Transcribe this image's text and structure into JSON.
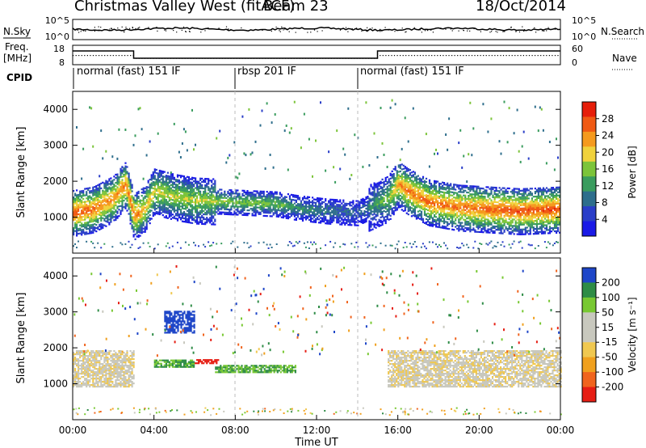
{
  "header": {
    "station": "Christmas Valley West (fitACF)",
    "beam": "Beam 23",
    "date": "18/Oct/2014"
  },
  "labels": {
    "nsky": "N.Sky",
    "nsearch": "N.Search",
    "freq_line1": "Freq.",
    "freq_line2": "[MHz]",
    "nave": "Nave",
    "cpid": "CPID",
    "slant_range": "Slant Range [km]",
    "power_colorbar": "Power [dB]",
    "velocity_colorbar": "Velocity [m s⁻¹]",
    "time_axis": "Time UT"
  },
  "noise_panel": {
    "left_ticks": [
      "10^5",
      "10^0"
    ],
    "right_ticks": [
      "10^5",
      "10^0"
    ]
  },
  "freq_panel": {
    "left_ticks": [
      "18",
      "8"
    ],
    "right_ticks": [
      "60",
      "0"
    ]
  },
  "cpid_segments": [
    {
      "label": "normal (fast) 151 IF",
      "start_hour": 0
    },
    {
      "label": "rbsp 201 IF",
      "start_hour": 8
    },
    {
      "label": "normal (fast) 151 IF",
      "start_hour": 14
    }
  ],
  "colors": {
    "power": [
      "#1a1ae6",
      "#2a3ec8",
      "#2e6e8c",
      "#3a9c5e",
      "#7cc43a",
      "#f0d23c",
      "#f59a1e",
      "#f05a14",
      "#e61e0a"
    ],
    "velocity": [
      "#e61e14",
      "#f0641e",
      "#f0a01e",
      "#f0c850",
      "#c8c8be",
      "#c8c8be",
      "#78c832",
      "#2e8c46",
      "#1e46c8"
    ]
  },
  "chart_data": [
    {
      "type": "heatmap",
      "name": "Power",
      "x_unit": "hours UT",
      "xlim": [
        0,
        24
      ],
      "ylim": [
        0,
        4500
      ],
      "yticks": [
        1000,
        2000,
        3000,
        4000
      ],
      "xtick_labels": [
        "00:00",
        "04:00",
        "08:00",
        "12:00",
        "16:00",
        "20:00",
        "00:00"
      ],
      "colorbar_ticks": [
        4,
        8,
        12,
        16,
        20,
        24,
        28
      ],
      "colorbar_range": [
        0,
        32
      ],
      "echo_band": [
        {
          "x": 0.0,
          "y": 1100,
          "v": 28
        },
        {
          "x": 1.0,
          "y": 1200,
          "v": 26
        },
        {
          "x": 2.0,
          "y": 1500,
          "v": 24
        },
        {
          "x": 2.6,
          "y": 1900,
          "v": 26
        },
        {
          "x": 3.0,
          "y": 1000,
          "v": 26
        },
        {
          "x": 3.5,
          "y": 1200,
          "v": 22
        },
        {
          "x": 4.0,
          "y": 1700,
          "v": 20
        },
        {
          "x": 5.0,
          "y": 1550,
          "v": 18
        },
        {
          "x": 6.0,
          "y": 1450,
          "v": 18
        },
        {
          "x": 8.0,
          "y": 1400,
          "v": 16
        },
        {
          "x": 10.0,
          "y": 1350,
          "v": 16
        },
        {
          "x": 11.0,
          "y": 1250,
          "v": 12
        },
        {
          "x": 12.5,
          "y": 1150,
          "v": 10
        },
        {
          "x": 14.0,
          "y": 1100,
          "v": 8
        },
        {
          "x": 15.5,
          "y": 1500,
          "v": 16
        },
        {
          "x": 16.0,
          "y": 1900,
          "v": 24
        },
        {
          "x": 16.5,
          "y": 1700,
          "v": 26
        },
        {
          "x": 17.5,
          "y": 1400,
          "v": 26
        },
        {
          "x": 19.0,
          "y": 1250,
          "v": 26
        },
        {
          "x": 22.0,
          "y": 1150,
          "v": 28
        },
        {
          "x": 24.0,
          "y": 1200,
          "v": 28
        }
      ]
    },
    {
      "type": "heatmap",
      "name": "Velocity",
      "x_unit": "hours UT",
      "xlim": [
        0,
        24
      ],
      "ylim": [
        0,
        4500
      ],
      "yticks": [
        1000,
        2000,
        3000,
        4000
      ],
      "xtick_labels": [
        "00:00",
        "04:00",
        "08:00",
        "12:00",
        "16:00",
        "20:00",
        "00:00"
      ],
      "colorbar_ticks": [
        200,
        100,
        50,
        15,
        -15,
        -50,
        -100,
        -200
      ],
      "features": [
        {
          "x0": 0.0,
          "x1": 3.0,
          "y0": 900,
          "y1": 1900,
          "v": 0
        },
        {
          "x0": 4.0,
          "x1": 6.0,
          "y0": 1450,
          "y1": 1650,
          "v": 50
        },
        {
          "x0": 4.5,
          "x1": 6.0,
          "y0": 2400,
          "y1": 3000,
          "v": 200
        },
        {
          "x0": 6.0,
          "x1": 7.2,
          "y0": 1550,
          "y1": 1650,
          "v": -200
        },
        {
          "x0": 7.0,
          "x1": 11.0,
          "y0": 1300,
          "y1": 1500,
          "v": 50
        },
        {
          "x0": 15.5,
          "x1": 24.0,
          "y0": 900,
          "y1": 1900,
          "v": 0
        }
      ]
    }
  ]
}
